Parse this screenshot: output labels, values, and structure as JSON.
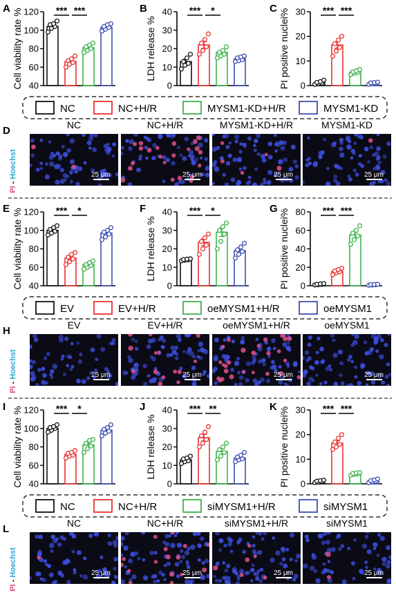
{
  "colors": {
    "black": "#111111",
    "red": "#e8322e",
    "green": "#3cb24a",
    "blue": "#3b4fb0",
    "cell_bg": "#0b0b16",
    "nucleus": "#3d4ee0",
    "pi": "#e0508a"
  },
  "scale_bar_label": "25 μm",
  "stain_label": {
    "pi": "PI",
    "dash": " - ",
    "hoechst": "Hoechst"
  },
  "groups": [
    {
      "legend": [
        "NC",
        "NC+H/R",
        "MYSM1-KD+H/R",
        "MYSM1-KD"
      ],
      "image_panel": {
        "letter": "D",
        "titles": [
          "NC",
          "NC+H/R",
          "MYSM1-KD+H/R",
          "MYSM1-KD"
        ],
        "pi_counts": [
          2,
          22,
          5,
          1
        ]
      },
      "chart_data": [
        {
          "letter": "A",
          "type": "bar",
          "title": "",
          "xlabel": "",
          "ylabel": "Cell viability rate %",
          "ylim": [
            40,
            120
          ],
          "yticks": [
            40,
            60,
            80,
            100,
            120
          ],
          "categories": [
            "NC",
            "NC+H/R",
            "MYSM1-KD+H/R",
            "MYSM1-KD"
          ],
          "values": [
            104,
            66,
            81,
            103
          ],
          "points": [
            [
              98,
              102,
              104,
              106,
              107,
              110
            ],
            [
              60,
              63,
              65,
              67,
              69,
              72
            ],
            [
              76,
              78,
              80,
              82,
              84,
              86
            ],
            [
              99,
              101,
              103,
              104,
              106,
              107
            ]
          ],
          "sig": [
            {
              "from": 0,
              "to": 1,
              "label": "***"
            },
            {
              "from": 1,
              "to": 2,
              "label": "***"
            }
          ]
        },
        {
          "letter": "B",
          "type": "bar",
          "title": "",
          "xlabel": "",
          "ylabel": "LDH release %",
          "ylim": [
            0,
            40
          ],
          "yticks": [
            0,
            10,
            20,
            30,
            40
          ],
          "categories": [
            "NC",
            "NC+H/R",
            "MYSM1-KD+H/R",
            "MYSM1-KD"
          ],
          "values": [
            13,
            22,
            18,
            14.5
          ],
          "points": [
            [
              9,
              11,
              12,
              13,
              15,
              17
            ],
            [
              17,
              19,
              21,
              23,
              25,
              28
            ],
            [
              15,
              16,
              17,
              18,
              19,
              21
            ],
            [
              13,
              13.5,
              14,
              15,
              15.5,
              16
            ]
          ],
          "sig": [
            {
              "from": 0,
              "to": 1,
              "label": "***"
            },
            {
              "from": 1,
              "to": 2,
              "label": "*"
            }
          ]
        },
        {
          "letter": "C",
          "type": "bar",
          "title": "",
          "xlabel": "",
          "ylabel": "PI positive nuclei%",
          "ylim": [
            0,
            30
          ],
          "yticks": [
            0,
            10,
            20,
            30
          ],
          "categories": [
            "NC",
            "NC+H/R",
            "MYSM1-KD+H/R",
            "MYSM1-KD"
          ],
          "values": [
            1.2,
            16.5,
            5.5,
            1
          ],
          "points": [
            [
              0.5,
              0.8,
              1.0,
              1.3,
              1.6,
              2.2
            ],
            [
              12,
              14,
              15.5,
              17,
              18.5,
              20
            ],
            [
              4.5,
              5,
              5.3,
              5.6,
              6,
              6.5
            ],
            [
              0.5,
              0.7,
              0.9,
              1.1,
              1.2,
              1.4
            ]
          ],
          "sig": [
            {
              "from": 0,
              "to": 1,
              "label": "***"
            },
            {
              "from": 1,
              "to": 2,
              "label": "***"
            }
          ]
        }
      ]
    },
    {
      "legend": [
        "EV",
        "EV+H/R",
        "oeMYSM1+H/R",
        "oeMYSM1"
      ],
      "image_panel": {
        "letter": "H",
        "titles": [
          "EV",
          "EV+H/R",
          "oeMYSM1+H/R",
          "oeMYSM1"
        ],
        "pi_counts": [
          0,
          14,
          26,
          0
        ]
      },
      "chart_data": [
        {
          "letter": "E",
          "type": "bar",
          "title": "",
          "xlabel": "",
          "ylabel": "Cell viability rate %",
          "ylim": [
            40,
            120
          ],
          "yticks": [
            40,
            60,
            80,
            100,
            120
          ],
          "categories": [
            "EV",
            "EV+H/R",
            "oeMYSM1+H/R",
            "oeMYSM1"
          ],
          "values": [
            100,
            70,
            63,
            97
          ],
          "points": [
            [
              95,
              97,
              99,
              101,
              103,
              105
            ],
            [
              63,
              66,
              69,
              71,
              74,
              76
            ],
            [
              58,
              60,
              62,
              63,
              65,
              67
            ],
            [
              90,
              93,
              96,
              98,
              100,
              103
            ]
          ],
          "sig": [
            {
              "from": 0,
              "to": 1,
              "label": "***"
            },
            {
              "from": 1,
              "to": 2,
              "label": "*"
            }
          ]
        },
        {
          "letter": "F",
          "type": "bar",
          "title": "",
          "xlabel": "",
          "ylabel": "LDH release %",
          "ylim": [
            0,
            40
          ],
          "yticks": [
            0,
            10,
            20,
            30,
            40
          ],
          "categories": [
            "EV",
            "EV+H/R",
            "oeMYSM1+H/R",
            "oeMYSM1"
          ],
          "values": [
            14,
            23.5,
            29,
            19
          ],
          "points": [
            [
              13.5,
              13.8,
              14,
              14.2,
              14.4,
              14.6
            ],
            [
              17,
              20,
              22,
              24,
              26,
              28
            ],
            [
              20,
              24,
              28,
              30,
              32,
              34
            ],
            [
              15,
              17,
              18.5,
              19.5,
              21,
              23
            ]
          ],
          "sig": [
            {
              "from": 0,
              "to": 1,
              "label": "***"
            },
            {
              "from": 1,
              "to": 2,
              "label": "*"
            }
          ]
        },
        {
          "letter": "G",
          "type": "bar",
          "title": "",
          "xlabel": "",
          "ylabel": "PI positive nuclei%",
          "ylim": [
            0,
            80
          ],
          "yticks": [
            0,
            20,
            40,
            60,
            80
          ],
          "categories": [
            "EV",
            "EV+H/R",
            "oeMYSM1+H/R",
            "oeMYSM1"
          ],
          "values": [
            1.5,
            15.5,
            55,
            1
          ],
          "points": [
            [
              0.8,
              1,
              1.3,
              1.6,
              2,
              2.4
            ],
            [
              12,
              14,
              15,
              16,
              17.5,
              19
            ],
            [
              45,
              50,
              54,
              57,
              60,
              65
            ],
            [
              0.5,
              0.8,
              1,
              1.2,
              1.4,
              1.6
            ]
          ],
          "sig": [
            {
              "from": 0,
              "to": 1,
              "label": "***"
            },
            {
              "from": 1,
              "to": 2,
              "label": "***"
            }
          ]
        }
      ]
    },
    {
      "legend": [
        "NC",
        "NC+H/R",
        "siMYSM1+H/R",
        "siMYSM1"
      ],
      "image_panel": {
        "letter": "L",
        "titles": [
          "NC",
          "NC+H/R",
          "siMYSM1+H/R",
          "siMYSM1"
        ],
        "pi_counts": [
          1,
          16,
          6,
          2
        ]
      },
      "chart_data": [
        {
          "letter": "I",
          "type": "bar",
          "title": "",
          "xlabel": "",
          "ylabel": "Cell viability rate %",
          "ylim": [
            40,
            120
          ],
          "yticks": [
            40,
            60,
            80,
            100,
            120
          ],
          "categories": [
            "NC",
            "NC+H/R",
            "siMYSM1+H/R",
            "siMYSM1"
          ],
          "values": [
            100,
            72,
            82,
            98
          ],
          "points": [
            [
              96,
              98,
              100,
              101,
              102,
              104
            ],
            [
              68,
              70,
              71,
              73,
              74,
              76
            ],
            [
              74,
              78,
              81,
              84,
              87,
              88
            ],
            [
              92,
              95,
              97,
              99,
              101,
              104
            ]
          ],
          "sig": [
            {
              "from": 0,
              "to": 1,
              "label": "***"
            },
            {
              "from": 1,
              "to": 2,
              "label": "*"
            }
          ]
        },
        {
          "letter": "J",
          "type": "bar",
          "title": "",
          "xlabel": "",
          "ylabel": "LDH release %",
          "ylim": [
            0,
            40
          ],
          "yticks": [
            0,
            10,
            20,
            30,
            40
          ],
          "categories": [
            "NC",
            "NC+H/R",
            "siMYSM1+H/R",
            "siMYSM1"
          ],
          "values": [
            13,
            25,
            17.5,
            14
          ],
          "points": [
            [
              11,
              12,
              12.5,
              13.5,
              14,
              15
            ],
            [
              20,
              22,
              24,
              26,
              28,
              31
            ],
            [
              13,
              15,
              17,
              18.5,
              20,
              22
            ],
            [
              12,
              13,
              13.5,
              14.5,
              15.5,
              17
            ]
          ],
          "sig": [
            {
              "from": 0,
              "to": 1,
              "label": "***"
            },
            {
              "from": 1,
              "to": 2,
              "label": "**"
            }
          ]
        },
        {
          "letter": "K",
          "type": "bar",
          "title": "",
          "xlabel": "",
          "ylabel": "PI positive nuclei%",
          "ylim": [
            0,
            30
          ],
          "yticks": [
            0,
            10,
            20,
            30
          ],
          "categories": [
            "NC",
            "NC+H/R",
            "siMYSM1+H/R",
            "siMYSM1"
          ],
          "values": [
            1,
            16.5,
            4,
            1.2
          ],
          "points": [
            [
              0.5,
              0.7,
              0.9,
              1.1,
              1.3,
              1.5
            ],
            [
              14,
              15,
              16,
              17,
              18.5,
              20
            ],
            [
              3.5,
              3.8,
              4,
              4.2,
              4.4,
              4.6
            ],
            [
              0.5,
              0.8,
              1,
              1.3,
              1.6,
              2
            ]
          ],
          "sig": [
            {
              "from": 0,
              "to": 1,
              "label": "***"
            },
            {
              "from": 1,
              "to": 2,
              "label": "***"
            }
          ]
        }
      ]
    }
  ]
}
